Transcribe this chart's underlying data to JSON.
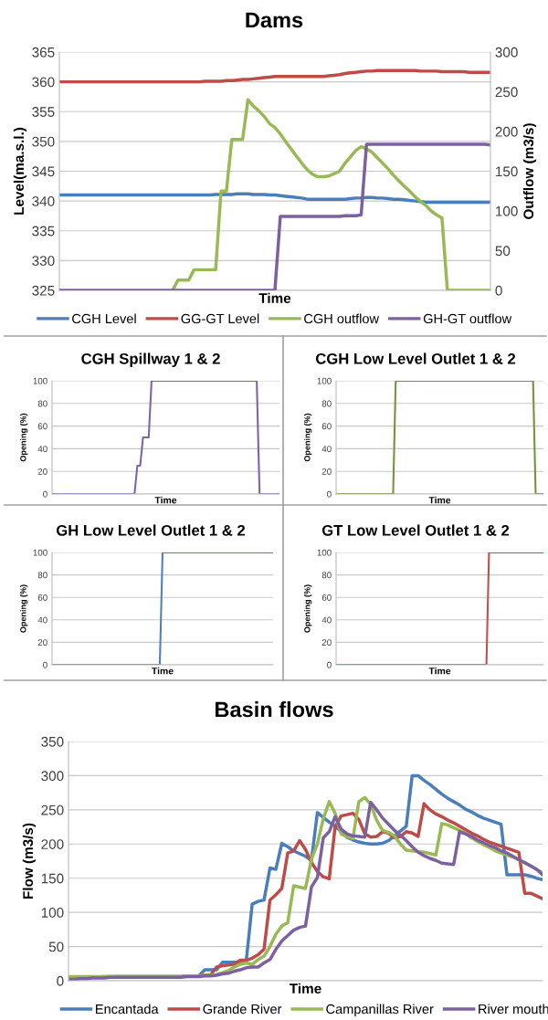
{
  "chart_data": [
    {
      "type": "line",
      "title": "Dams",
      "xlabel": "Time",
      "ylabel": "Level(ma.s.l.)",
      "y2label": "Outflow (m3/s)",
      "ylim": [
        325,
        365
      ],
      "yticks": [
        325,
        330,
        335,
        340,
        345,
        350,
        355,
        360,
        365
      ],
      "y2lim": [
        0,
        300
      ],
      "y2ticks": [
        0,
        50,
        100,
        150,
        200,
        250,
        300
      ],
      "grid": "y",
      "legend": "bottom",
      "categories": [
        null,
        null,
        null,
        null,
        null,
        null,
        null,
        null,
        null,
        null,
        null,
        null,
        null,
        null,
        null,
        null,
        null,
        null,
        null,
        null,
        null,
        null,
        null,
        null,
        null,
        null,
        null,
        null,
        null,
        null,
        null,
        null,
        null,
        null,
        null,
        null,
        null,
        null,
        null,
        null,
        null,
        null,
        null,
        null,
        null,
        null,
        null,
        null,
        null,
        null,
        null,
        null,
        null,
        null,
        null,
        null,
        null,
        null,
        null,
        null,
        null,
        null,
        null,
        null,
        null,
        null,
        null,
        null,
        null,
        null,
        null,
        null,
        null,
        null,
        null,
        null,
        null,
        null,
        null,
        null,
        null
      ],
      "series": [
        {
          "name": "CGH Level",
          "color": "#4a7ebb",
          "values": [
            341.0,
            341.0,
            341.0,
            341.0,
            341.0,
            341.0,
            341.0,
            341.0,
            341.0,
            341.0,
            341.0,
            341.0,
            341.0,
            341.0,
            341.0,
            341.0,
            341.0,
            341.0,
            341.0,
            341.0,
            341.0,
            341.0,
            341.0,
            341.0,
            341.0,
            341.0,
            341.0,
            341.0,
            341.0,
            341.1,
            341.1,
            341.1,
            341.1,
            341.2,
            341.2,
            341.2,
            341.1,
            341.1,
            341.1,
            341.0,
            341.0,
            340.9,
            340.8,
            340.7,
            340.6,
            340.5,
            340.3,
            340.3,
            340.3,
            340.3,
            340.3,
            340.3,
            340.3,
            340.3,
            340.4,
            340.5,
            340.5,
            340.6,
            340.6,
            340.5,
            340.5,
            340.4,
            340.3,
            340.3,
            340.2,
            340.1,
            340.0,
            339.9,
            339.8,
            339.8,
            339.8,
            339.8,
            339.8,
            339.8,
            339.8,
            339.8,
            339.8,
            339.8,
            339.8,
            339.8,
            339.8
          ]
        },
        {
          "name": "GG-GT Level",
          "color": "#be4b48",
          "values": [
            360.0,
            360.0,
            360.0,
            360.0,
            360.0,
            360.0,
            360.0,
            360.0,
            360.0,
            360.0,
            360.0,
            360.0,
            360.0,
            360.0,
            360.0,
            360.0,
            360.0,
            360.0,
            360.0,
            360.0,
            360.0,
            360.0,
            360.0,
            360.0,
            360.0,
            360.0,
            360.0,
            360.1,
            360.1,
            360.1,
            360.1,
            360.2,
            360.2,
            360.3,
            360.4,
            360.4,
            360.5,
            360.6,
            360.7,
            360.8,
            360.9,
            360.9,
            360.9,
            360.9,
            360.9,
            360.9,
            360.9,
            360.9,
            360.9,
            360.9,
            361.0,
            361.1,
            361.2,
            361.4,
            361.5,
            361.6,
            361.7,
            361.8,
            361.8,
            361.9,
            361.9,
            361.9,
            361.9,
            361.9,
            361.9,
            361.9,
            361.9,
            361.8,
            361.8,
            361.8,
            361.8,
            361.7,
            361.7,
            361.7,
            361.7,
            361.7,
            361.6,
            361.6,
            361.6,
            361.6,
            361.6
          ]
        },
        {
          "name": "CGH outflow",
          "color": "#98b954",
          "axis": "y2",
          "values": [
            null,
            null,
            null,
            null,
            null,
            null,
            null,
            null,
            null,
            null,
            null,
            null,
            null,
            null,
            null,
            null,
            null,
            null,
            null,
            null,
            null,
            0,
            13,
            13,
            13,
            26,
            26,
            26,
            26,
            26,
            125,
            125,
            190,
            190,
            190,
            240,
            232,
            226,
            219,
            210,
            205,
            197,
            187,
            178,
            169,
            160,
            152,
            146,
            143,
            143,
            144,
            147,
            150,
            160,
            168,
            176,
            181,
            178,
            174,
            167,
            160,
            153,
            145,
            138,
            131,
            125,
            118,
            112,
            107,
            100,
            95,
            91,
            0,
            0,
            0,
            0,
            0,
            0,
            0,
            0,
            0
          ]
        },
        {
          "name": "GH-GT outflow",
          "color": "#7d60a0",
          "axis": "y2",
          "values": [
            0,
            0,
            0,
            0,
            0,
            0,
            0,
            0,
            0,
            0,
            0,
            0,
            0,
            0,
            0,
            0,
            0,
            0,
            0,
            0,
            0,
            0,
            0,
            0,
            0,
            0,
            0,
            0,
            0,
            0,
            0,
            0,
            0,
            0,
            0,
            0,
            0,
            0,
            0,
            0,
            0,
            93,
            93,
            93,
            93,
            93,
            93,
            93,
            93,
            93,
            93,
            93,
            93,
            94,
            94,
            94,
            95,
            184,
            184,
            184,
            184,
            184,
            184,
            184,
            184,
            184,
            184,
            184,
            184,
            184,
            184,
            184,
            184,
            184,
            184,
            184,
            184,
            184,
            184,
            184,
            183
          ]
        }
      ]
    },
    {
      "type": "line",
      "title": "CGH Spillway 1 & 2",
      "xlabel": "Time",
      "ylabel": "Opening (%)",
      "ylim": [
        0,
        100
      ],
      "yticks": [
        0,
        20,
        40,
        60,
        80,
        100
      ],
      "grid": "y",
      "categories": [
        null,
        null,
        null,
        null,
        null,
        null,
        null,
        null,
        null,
        null,
        null,
        null,
        null,
        null,
        null,
        null,
        null,
        null,
        null,
        null,
        null,
        null,
        null,
        null,
        null,
        null,
        null,
        null,
        null,
        null,
        null,
        null,
        null,
        null,
        null,
        null,
        null,
        null,
        null,
        null,
        null,
        null,
        null,
        null,
        null,
        null,
        null,
        null,
        null,
        null,
        null,
        null,
        null,
        null,
        null,
        null,
        null,
        null,
        null,
        null,
        null,
        null,
        null,
        null,
        null,
        null,
        null,
        null,
        null,
        null,
        null,
        null,
        null,
        null,
        null,
        null,
        null,
        null,
        null,
        null,
        null
      ],
      "series": [
        {
          "color": "#8064a2",
          "values": [
            0,
            0,
            0,
            0,
            0,
            0,
            0,
            0,
            0,
            0,
            0,
            0,
            0,
            0,
            0,
            0,
            0,
            0,
            0,
            0,
            0,
            0,
            0,
            0,
            0,
            0,
            0,
            0,
            0,
            0,
            25,
            25,
            50,
            50,
            50,
            100,
            100,
            100,
            100,
            100,
            100,
            100,
            100,
            100,
            100,
            100,
            100,
            100,
            100,
            100,
            100,
            100,
            100,
            100,
            100,
            100,
            100,
            100,
            100,
            100,
            100,
            100,
            100,
            100,
            100,
            100,
            100,
            100,
            100,
            100,
            100,
            100,
            100,
            0,
            0,
            0,
            0,
            0,
            0,
            0,
            0
          ]
        }
      ]
    },
    {
      "type": "line",
      "title": "CGH Low Level Outlet 1 & 2",
      "xlabel": "Time",
      "ylabel": "Opening (%)",
      "ylim": [
        0,
        100
      ],
      "yticks": [
        0,
        20,
        40,
        60,
        80,
        100
      ],
      "grid": "y",
      "categories": [
        null,
        null,
        null,
        null,
        null,
        null,
        null,
        null,
        null,
        null,
        null,
        null,
        null,
        null,
        null,
        null,
        null,
        null,
        null,
        null,
        null,
        null,
        null,
        null,
        null,
        null,
        null,
        null,
        null,
        null,
        null,
        null,
        null,
        null,
        null,
        null,
        null,
        null,
        null,
        null,
        null,
        null,
        null,
        null,
        null,
        null,
        null,
        null,
        null,
        null,
        null,
        null,
        null,
        null,
        null,
        null,
        null,
        null,
        null,
        null,
        null,
        null,
        null,
        null,
        null,
        null,
        null,
        null,
        null,
        null,
        null,
        null,
        null,
        null,
        null,
        null,
        null,
        null,
        null,
        null,
        null
      ],
      "series": [
        {
          "color": "#77933c",
          "values": [
            0,
            0,
            0,
            0,
            0,
            0,
            0,
            0,
            0,
            0,
            0,
            0,
            0,
            0,
            0,
            0,
            0,
            0,
            0,
            0,
            0,
            0,
            0,
            100,
            100,
            100,
            100,
            100,
            100,
            100,
            100,
            100,
            100,
            100,
            100,
            100,
            100,
            100,
            100,
            100,
            100,
            100,
            100,
            100,
            100,
            100,
            100,
            100,
            100,
            100,
            100,
            100,
            100,
            100,
            100,
            100,
            100,
            100,
            100,
            100,
            100,
            100,
            100,
            100,
            100,
            100,
            100,
            100,
            100,
            100,
            100,
            100,
            100,
            100,
            100,
            100,
            100,
            0,
            0,
            0,
            0
          ]
        }
      ]
    },
    {
      "type": "line",
      "title": "GH Low Level Outlet 1 & 2",
      "xlabel": "Time",
      "ylabel": "Opening (%)",
      "ylim": [
        0,
        100
      ],
      "yticks": [
        0,
        20,
        40,
        60,
        80,
        100
      ],
      "grid": "y",
      "categories": [
        null,
        null,
        null,
        null,
        null,
        null,
        null,
        null,
        null,
        null,
        null,
        null,
        null,
        null,
        null,
        null,
        null,
        null,
        null,
        null,
        null,
        null,
        null,
        null,
        null,
        null,
        null,
        null,
        null,
        null,
        null,
        null,
        null,
        null,
        null,
        null,
        null,
        null,
        null,
        null,
        null,
        null,
        null,
        null,
        null,
        null,
        null,
        null,
        null,
        null,
        null,
        null,
        null,
        null,
        null,
        null,
        null,
        null,
        null,
        null,
        null,
        null,
        null,
        null,
        null,
        null,
        null,
        null,
        null,
        null,
        null,
        null,
        null,
        null,
        null,
        null,
        null,
        null,
        null,
        null,
        null
      ],
      "series": [
        {
          "color": "#4f81bd",
          "values": [
            0,
            0,
            0,
            0,
            0,
            0,
            0,
            0,
            0,
            0,
            0,
            0,
            0,
            0,
            0,
            0,
            0,
            0,
            0,
            0,
            0,
            0,
            0,
            0,
            0,
            0,
            0,
            0,
            0,
            0,
            0,
            0,
            0,
            0,
            0,
            0,
            0,
            0,
            0,
            0,
            100,
            100,
            100,
            100,
            100,
            100,
            100,
            100,
            100,
            100,
            100,
            100,
            100,
            100,
            100,
            100,
            100,
            100,
            100,
            100,
            100,
            100,
            100,
            100,
            100,
            100,
            100,
            100,
            100,
            100,
            100,
            100,
            100,
            100,
            100,
            100,
            100,
            100,
            100,
            100,
            100
          ]
        }
      ]
    },
    {
      "type": "line",
      "title": "GT Low Level Outlet 1 & 2",
      "xlabel": "Time",
      "ylabel": "Opening (%)",
      "ylim": [
        0,
        100
      ],
      "yticks": [
        0,
        20,
        40,
        60,
        80,
        100
      ],
      "grid": "y",
      "categories": [
        null,
        null,
        null,
        null,
        null,
        null,
        null,
        null,
        null,
        null,
        null,
        null,
        null,
        null,
        null,
        null,
        null,
        null,
        null,
        null,
        null,
        null,
        null,
        null,
        null,
        null,
        null,
        null,
        null,
        null,
        null,
        null,
        null,
        null,
        null,
        null,
        null,
        null,
        null,
        null,
        null,
        null,
        null,
        null,
        null,
        null,
        null,
        null,
        null,
        null,
        null,
        null,
        null,
        null,
        null,
        null,
        null,
        null,
        null,
        null,
        null,
        null,
        null,
        null,
        null,
        null,
        null,
        null,
        null,
        null,
        null,
        null,
        null,
        null,
        null,
        null,
        null,
        null,
        null,
        null,
        null
      ],
      "series": [
        {
          "color": "#c0504d",
          "values": [
            0,
            0,
            0,
            0,
            0,
            0,
            0,
            0,
            0,
            0,
            0,
            0,
            0,
            0,
            0,
            0,
            0,
            0,
            0,
            0,
            0,
            0,
            0,
            0,
            0,
            0,
            0,
            0,
            0,
            0,
            0,
            0,
            0,
            0,
            0,
            0,
            0,
            0,
            0,
            0,
            0,
            0,
            0,
            0,
            0,
            0,
            0,
            0,
            0,
            0,
            0,
            0,
            0,
            0,
            0,
            0,
            0,
            0,
            0,
            100,
            100,
            100,
            100,
            100,
            100,
            100,
            100,
            100,
            100,
            100,
            100,
            100,
            100,
            100,
            100,
            100,
            100,
            100,
            100,
            100,
            100
          ]
        }
      ]
    },
    {
      "type": "line",
      "title": "Basin flows",
      "xlabel": "Time",
      "ylabel": "Flow (m3/s)",
      "ylim": [
        0,
        350
      ],
      "yticks": [
        0,
        50,
        100,
        150,
        200,
        250,
        300,
        350
      ],
      "grid": "y",
      "legend": "bottom",
      "categories": [
        null,
        null,
        null,
        null,
        null,
        null,
        null,
        null,
        null,
        null,
        null,
        null,
        null,
        null,
        null,
        null,
        null,
        null,
        null,
        null,
        null,
        null,
        null,
        null,
        null,
        null,
        null,
        null,
        null,
        null,
        null,
        null,
        null,
        null,
        null,
        null,
        null,
        null,
        null,
        null,
        null,
        null,
        null,
        null,
        null,
        null,
        null,
        null,
        null,
        null,
        null,
        null,
        null,
        null,
        null,
        null,
        null,
        null,
        null,
        null,
        null,
        null,
        null,
        null,
        null,
        null,
        null,
        null,
        null,
        null,
        null,
        null,
        null,
        null,
        null,
        null,
        null,
        null,
        null,
        null,
        null
      ],
      "series": [
        {
          "name": "Encantada",
          "color": "#4a7ebb",
          "values": [
            null,
            null,
            null,
            null,
            null,
            5,
            5,
            5,
            6,
            6,
            6,
            6,
            6,
            6,
            6,
            6,
            6,
            6,
            6,
            6,
            7,
            7,
            7,
            16,
            16,
            16,
            27,
            27,
            27,
            28,
            29,
            112,
            116,
            118,
            165,
            163,
            201,
            196,
            190,
            186,
            182,
            176,
            246,
            239,
            232,
            226,
            218,
            210,
            206,
            203,
            201,
            200,
            200,
            201,
            205,
            212,
            219,
            226,
            300,
            300,
            293,
            287,
            280,
            273,
            267,
            262,
            257,
            251,
            247,
            242,
            238,
            235,
            232,
            229,
            155,
            155,
            155,
            155,
            153,
            150,
            148
          ]
        },
        {
          "name": "Grande River",
          "color": "#be4b48",
          "values": [
            null,
            null,
            null,
            null,
            null,
            null,
            6,
            6,
            6,
            6,
            6,
            6,
            6,
            6,
            6,
            6,
            6,
            6,
            6,
            6,
            7,
            7,
            7,
            8,
            9,
            20,
            22,
            23,
            24,
            30,
            30,
            33,
            38,
            46,
            118,
            126,
            135,
            187,
            190,
            205,
            192,
            173,
            160,
            152,
            149,
            225,
            241,
            243,
            245,
            236,
            215,
            210,
            211,
            218,
            216,
            209,
            211,
            218,
            216,
            211,
            259,
            250,
            244,
            240,
            235,
            231,
            226,
            221,
            216,
            212,
            207,
            203,
            200,
            197,
            194,
            191,
            188,
            128,
            128,
            124,
            120
          ]
        },
        {
          "name": "Campanillas River",
          "color": "#98b954",
          "values": [
            6,
            6,
            6,
            6,
            6,
            6,
            6,
            6,
            6,
            6,
            6,
            6,
            6,
            6,
            6,
            6,
            6,
            6,
            6,
            6,
            7,
            7,
            7,
            8,
            8,
            9,
            12,
            15,
            20,
            24,
            26,
            24,
            31,
            36,
            50,
            68,
            80,
            85,
            139,
            137,
            135,
            178,
            200,
            237,
            262,
            245,
            215,
            211,
            208,
            262,
            268,
            258,
            235,
            220,
            217,
            212,
            200,
            191,
            190,
            189,
            188,
            186,
            184,
            230,
            228,
            224,
            220,
            216,
            209,
            204,
            199,
            195,
            190,
            187,
            184,
            181,
            177,
            172,
            168,
            163,
            158
          ]
        },
        {
          "name": "River mouth",
          "color": "#7d60a0",
          "values": [
            2,
            2,
            3,
            3,
            4,
            4,
            4,
            5,
            5,
            5,
            5,
            5,
            5,
            5,
            5,
            5,
            5,
            5,
            5,
            5,
            6,
            6,
            6,
            7,
            7,
            8,
            10,
            11,
            14,
            16,
            19,
            20,
            20,
            26,
            31,
            46,
            58,
            66,
            74,
            78,
            80,
            137,
            151,
            209,
            218,
            240,
            222,
            215,
            212,
            211,
            210,
            261,
            250,
            238,
            229,
            220,
            213,
            205,
            196,
            188,
            183,
            179,
            176,
            172,
            171,
            170,
            218,
            215,
            211,
            206,
            202,
            198,
            195,
            190,
            187,
            182,
            177,
            173,
            168,
            163,
            155
          ]
        }
      ]
    }
  ]
}
